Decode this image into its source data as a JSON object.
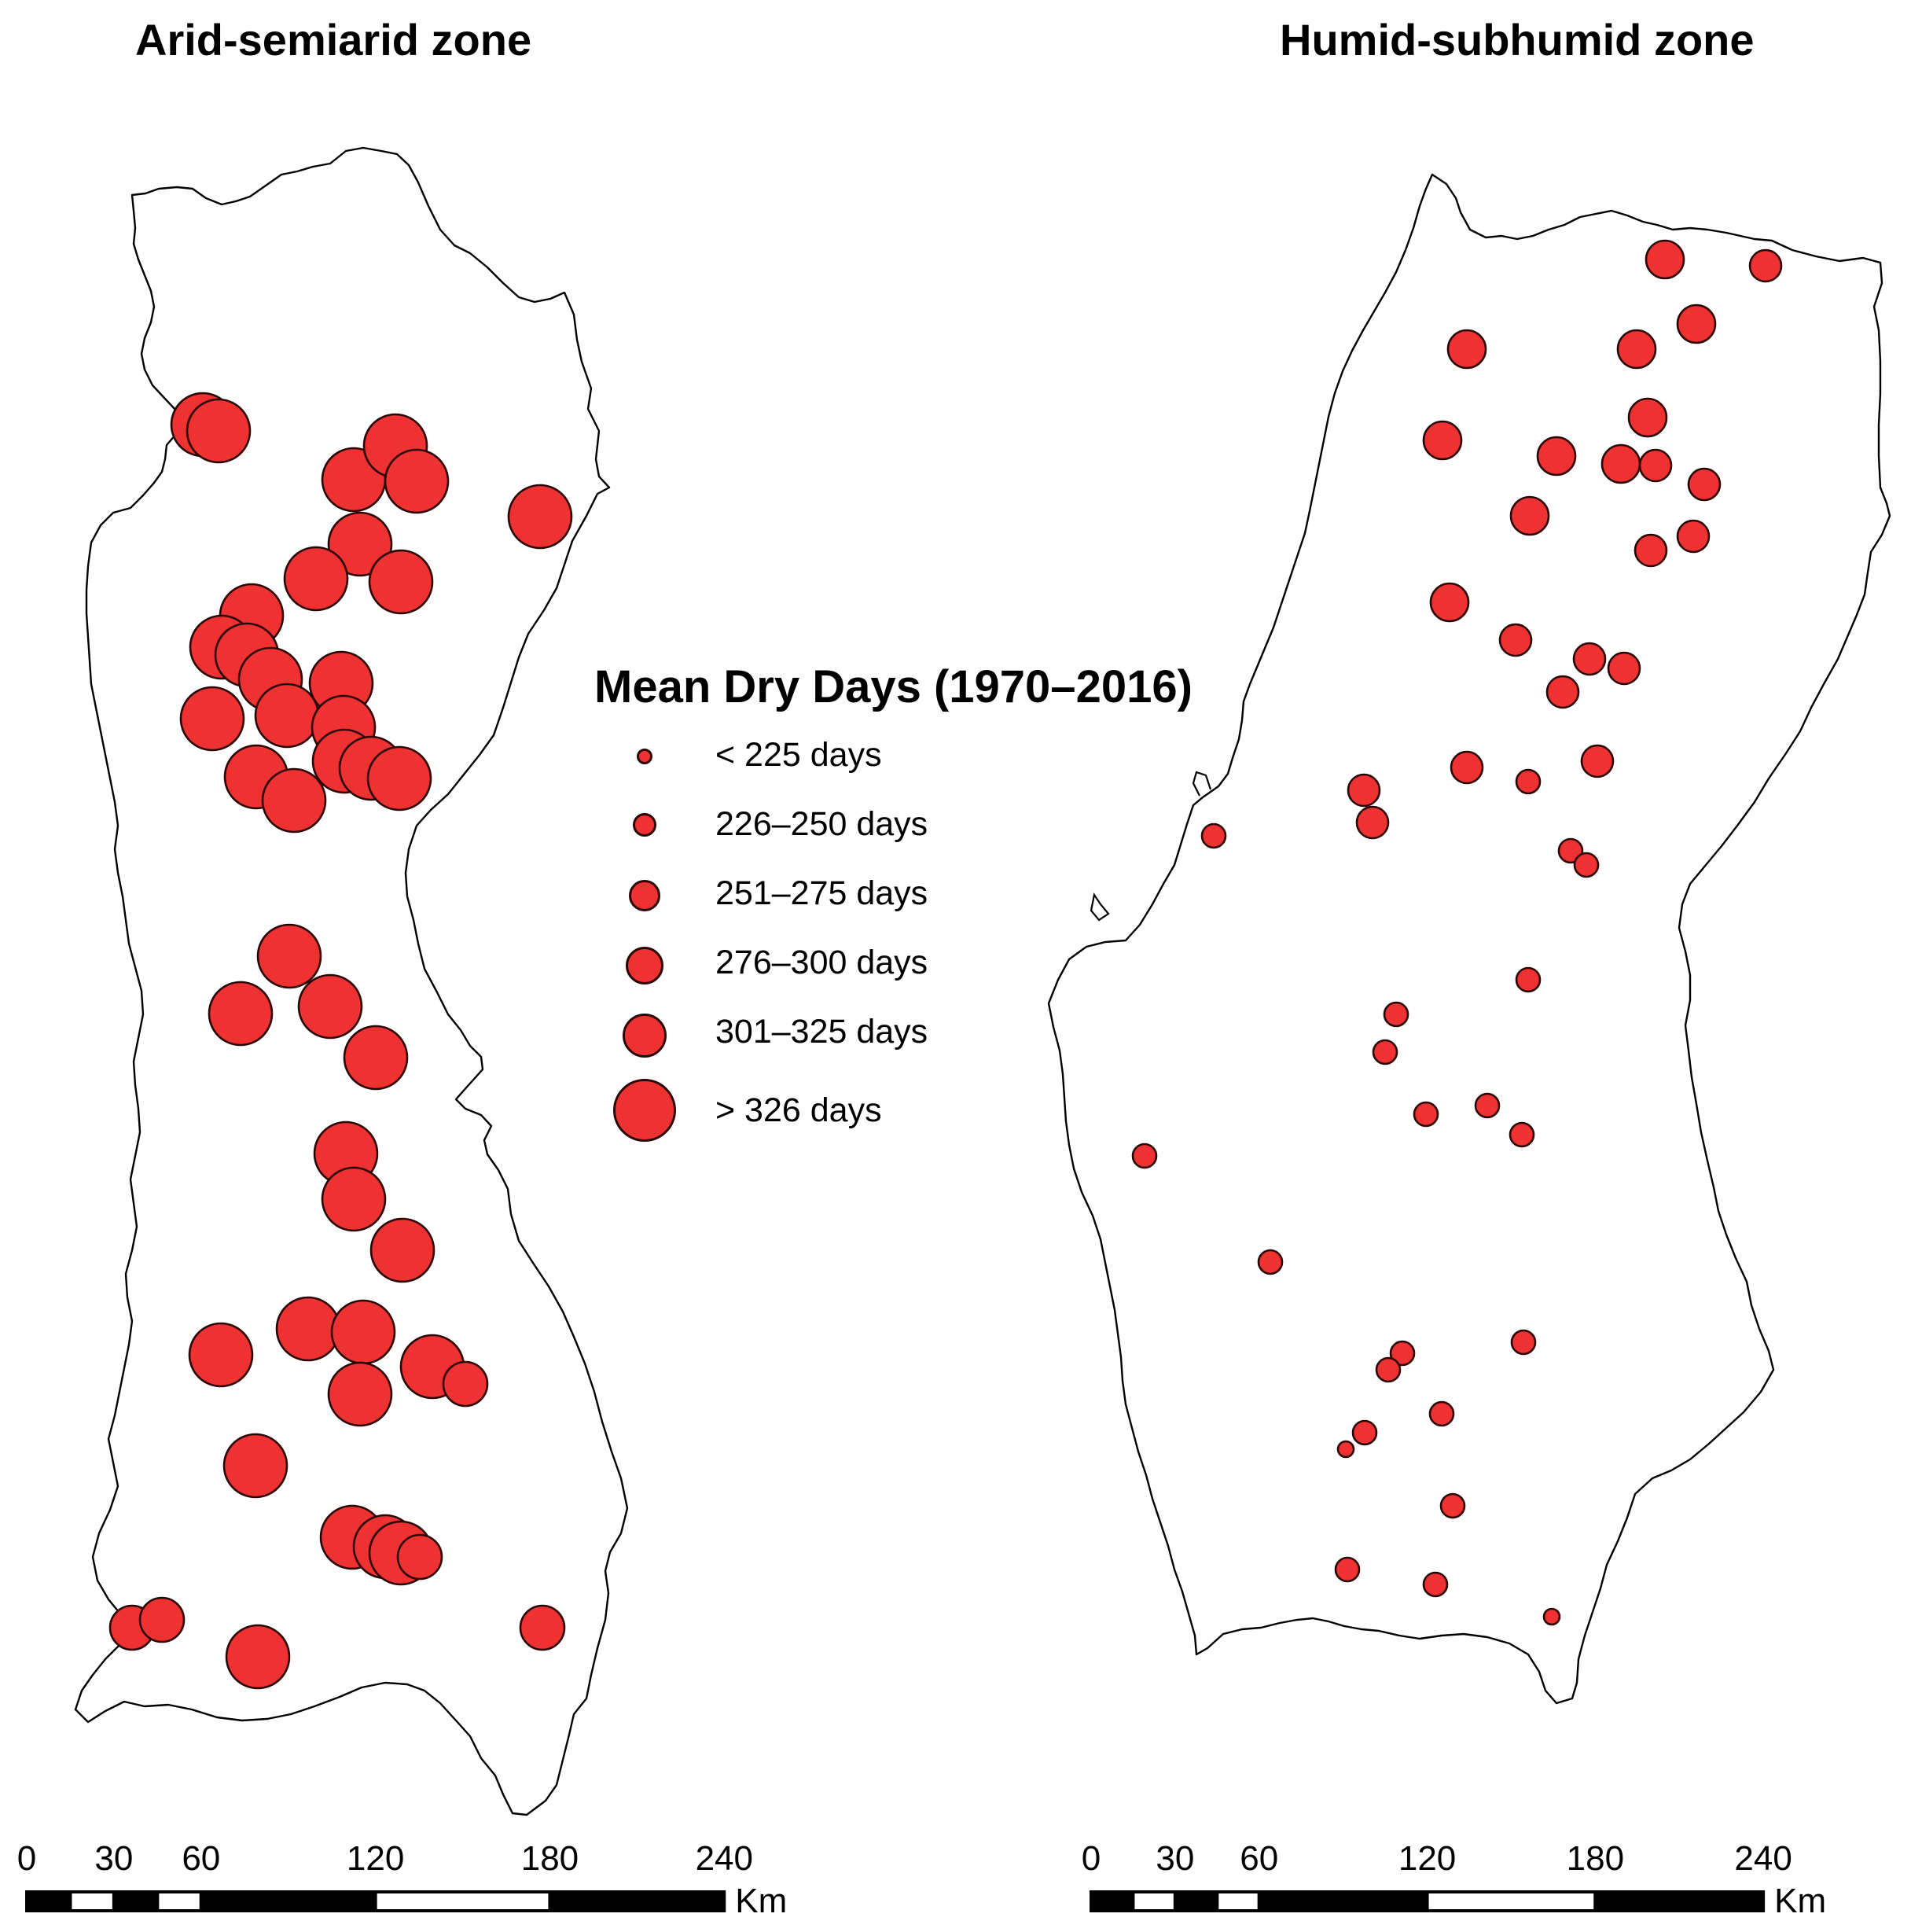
{
  "panels": [
    {
      "title": "Arid-semiarid zone"
    },
    {
      "title": "Humid-subhumid zone"
    }
  ],
  "legend": {
    "title": "Mean Dry Days (1970–2016)",
    "classes": [
      {
        "label": "< 225 days",
        "size_class": 1
      },
      {
        "label": "226–250 days",
        "size_class": 2
      },
      {
        "label": "251–275 days",
        "size_class": 3
      },
      {
        "label": "276–300 days",
        "size_class": 4
      },
      {
        "label": "301–325 days",
        "size_class": 5
      },
      {
        "label": "> 326 days",
        "size_class": 6
      }
    ]
  },
  "scale_bar": {
    "ticks": [
      "0",
      "30",
      "60",
      "120",
      "180",
      "240"
    ],
    "unit": "Km"
  },
  "colors": {
    "station_fill": "#ee3131",
    "station_stroke": "#2b0505",
    "boundary": "#000000"
  }
}
